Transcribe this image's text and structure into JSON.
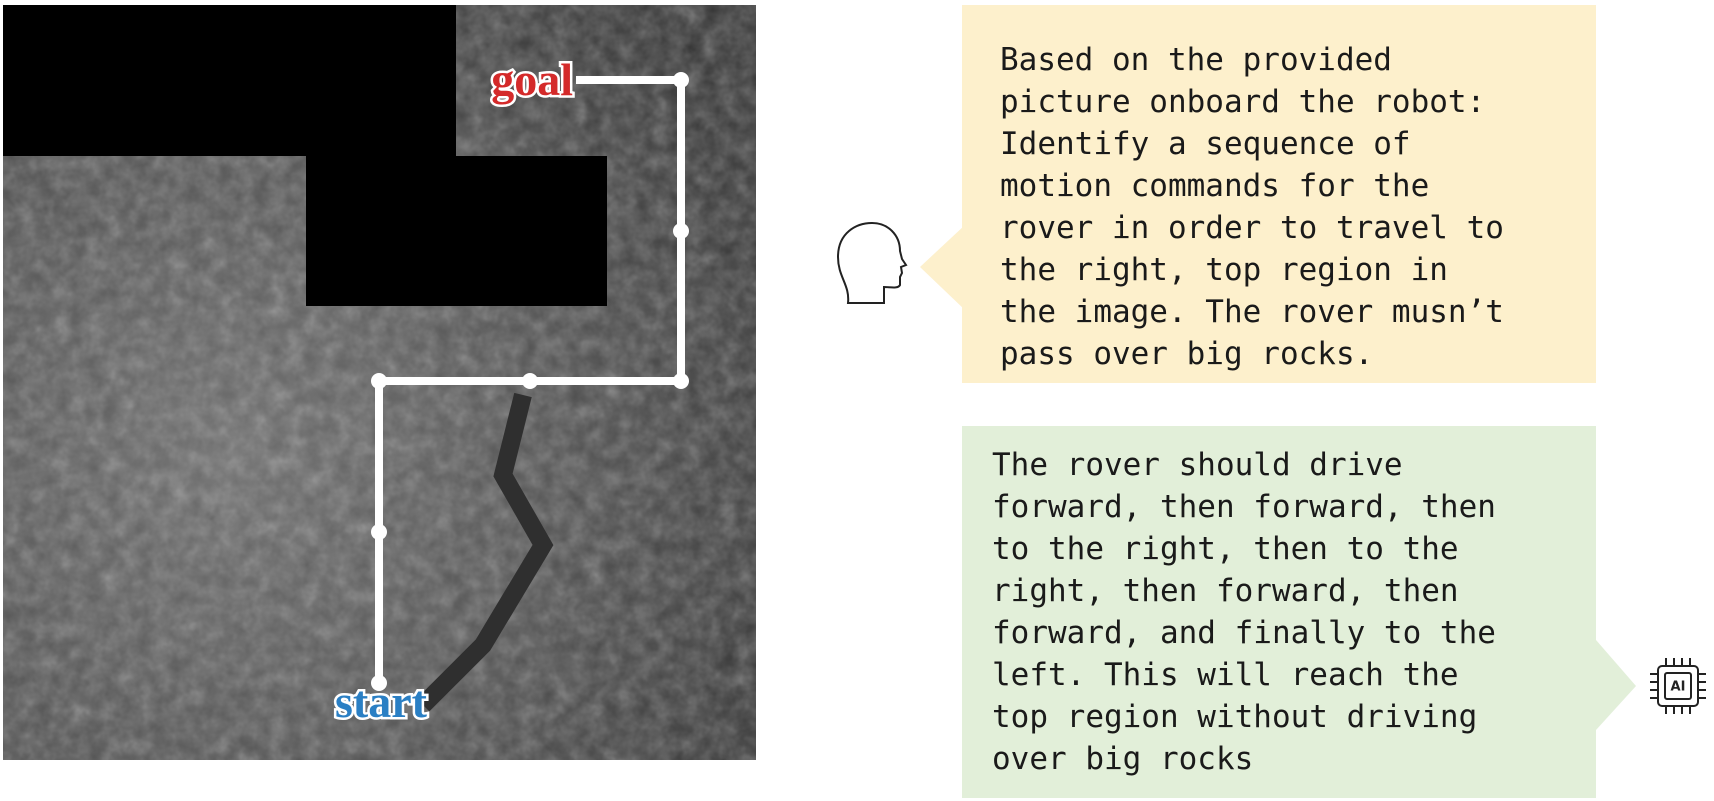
{
  "image": {
    "goal_label": "goal",
    "start_label": "start"
  },
  "prompt": {
    "lines": [
      "Based on the provided",
      "picture onboard the robot:",
      "Identify a sequence of",
      "motion commands for the",
      "rover in order to travel to",
      "the right, top region in",
      "the image. The rover musn’t",
      "pass over big rocks."
    ]
  },
  "response": {
    "lines": [
      "The rover should drive",
      "forward, then forward, then",
      "to the right, then to the",
      "right, then forward, then",
      "forward, and finally to the",
      "left. This will reach the",
      "top region without driving",
      "over big rocks"
    ]
  },
  "icons": {
    "ai_chip": "AI"
  }
}
